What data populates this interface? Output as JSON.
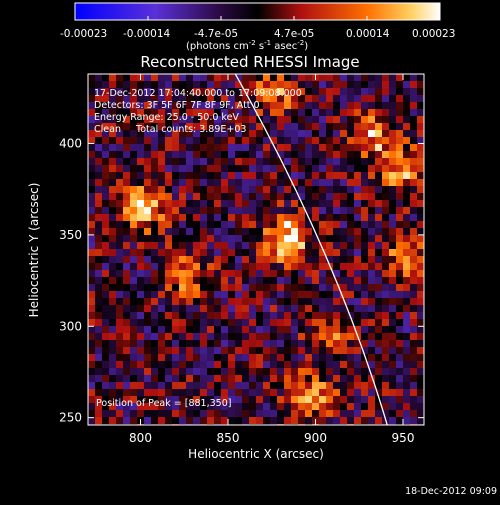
{
  "colorbar": {
    "ticks": [
      "-0.00023",
      "-0.00014",
      "-4.7e-05",
      "4.7e-05",
      "0.00014",
      "0.00023"
    ],
    "unit_prefix": "(photons cm",
    "unit_exp1": "-2",
    "unit_mid": " s",
    "unit_exp2": "-1",
    "unit_mid2": " asec",
    "unit_exp3": "-2",
    "unit_suffix": ")"
  },
  "annotations": {
    "line1": "17-Dec-2012 17:04:40.000 to 17:09:08.000",
    "line2": "Detectors: 3F 5F 6F 7F 8F 9F, Att 0",
    "line3": "Energy Range: 25.0 - 50.0 keV",
    "line4": "Clean     Total counts: 3.89E+03",
    "peak": "Position of Peak = [881,350]"
  },
  "footer": {
    "timestamp": "18-Dec-2012 09:09"
  },
  "chart_data": {
    "type": "heatmap",
    "title": "Reconstructed RHESSI Image",
    "xlabel": "Heliocentric X (arcsec)",
    "ylabel": "Heliocentric Y (arcsec)",
    "xlim": [
      770,
      962
    ],
    "ylim": [
      246,
      438
    ],
    "x_ticks": [
      800,
      850,
      900,
      950
    ],
    "y_ticks": [
      250,
      300,
      350,
      400
    ],
    "colorbar_range": [
      -0.00023,
      0.00023
    ],
    "colormap": [
      "#0000ff",
      "#6a2fd0",
      "#000000",
      "#c01010",
      "#ff7a00",
      "#ffffff"
    ],
    "limb_color": "#ffffff",
    "peak_position": [
      881,
      350
    ],
    "hot_spots": [
      {
        "x": 881,
        "y": 350,
        "value": 0.00023
      },
      {
        "x": 800,
        "y": 367,
        "value": 0.0002
      },
      {
        "x": 895,
        "y": 263,
        "value": 0.00019
      },
      {
        "x": 947,
        "y": 388,
        "value": 0.00018
      },
      {
        "x": 931,
        "y": 407,
        "value": 0.00016
      },
      {
        "x": 875,
        "y": 430,
        "value": 0.00014
      },
      {
        "x": 950,
        "y": 340,
        "value": 0.00014
      },
      {
        "x": 825,
        "y": 330,
        "value": 0.00013
      },
      {
        "x": 905,
        "y": 297,
        "value": 0.00012
      }
    ]
  }
}
